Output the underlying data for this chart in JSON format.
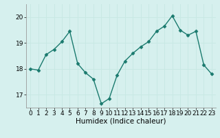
{
  "x": [
    0,
    1,
    2,
    3,
    4,
    5,
    6,
    7,
    8,
    9,
    10,
    11,
    12,
    13,
    14,
    15,
    16,
    17,
    18,
    19,
    20,
    21,
    22,
    23
  ],
  "y": [
    18.0,
    17.95,
    18.55,
    18.75,
    19.05,
    19.45,
    18.2,
    17.85,
    17.6,
    16.65,
    16.85,
    17.75,
    18.3,
    18.6,
    18.85,
    19.05,
    19.45,
    19.65,
    20.05,
    19.5,
    19.3,
    19.45,
    18.15,
    17.8
  ],
  "xlabel": "Humidex (Indice chaleur)",
  "xlim": [
    -0.5,
    23.5
  ],
  "ylim": [
    16.5,
    20.5
  ],
  "yticks": [
    17,
    18,
    19,
    20
  ],
  "xticks": [
    0,
    1,
    2,
    3,
    4,
    5,
    6,
    7,
    8,
    9,
    10,
    11,
    12,
    13,
    14,
    15,
    16,
    17,
    18,
    19,
    20,
    21,
    22,
    23
  ],
  "line_color": "#1a7a6e",
  "marker": "D",
  "markersize": 2.5,
  "bg_color": "#d6f0ee",
  "grid_color": "#c8e8e4",
  "tick_fontsize": 6.5,
  "xlabel_fontsize": 7.5,
  "linewidth": 1.0
}
